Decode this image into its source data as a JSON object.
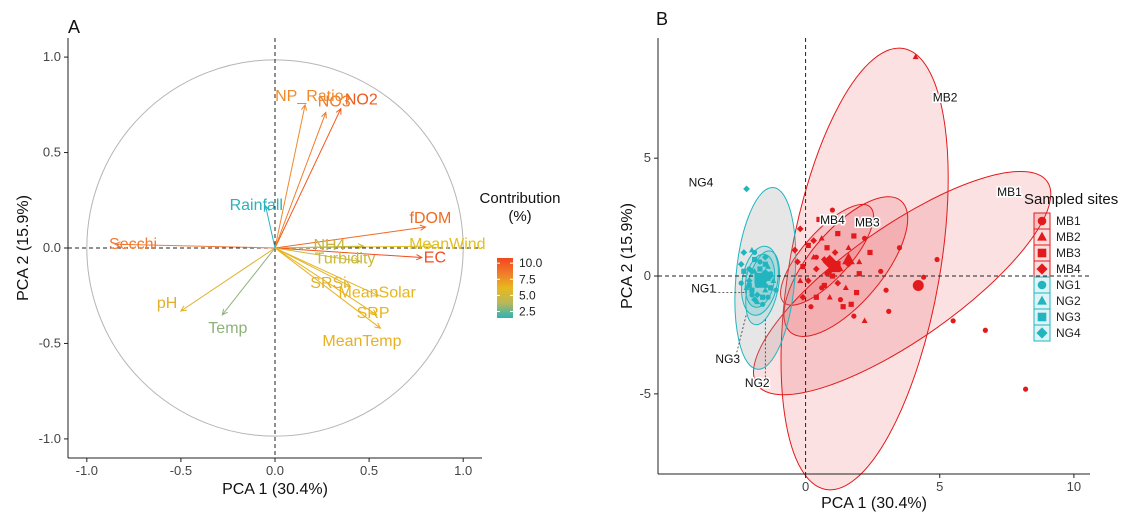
{
  "chart_data": [
    {
      "panel": "A",
      "type": "scatter",
      "subtype": "pca-variable-correlation-circle",
      "xlabel": "PCA 1 (30.4%)",
      "ylabel": "PCA 2 (15.9%)",
      "xlim": [
        -1.1,
        1.1
      ],
      "ylim": [
        -1.1,
        1.1
      ],
      "xticks": [
        -1.0,
        -0.5,
        0.0,
        0.5,
        1.0
      ],
      "yticks": [
        -1.0,
        -0.5,
        0.0,
        0.5,
        1.0
      ],
      "xtick_labels": [
        "-1.0",
        "-0.5",
        "0.0",
        "0.5",
        "1.0"
      ],
      "ytick_labels": [
        "-1.0",
        "-0.5",
        "0.0",
        "0.5",
        "1.0"
      ],
      "grid": false,
      "legend": {
        "title": "Contribution\n(%)",
        "placement": "right",
        "type": "colorbar",
        "ticks": [
          2.5,
          5.0,
          7.5,
          10.0
        ],
        "tick_labels": [
          "2.5",
          "5.0",
          "7.5",
          "10.0"
        ],
        "range": [
          1.5,
          10.8
        ],
        "colors": [
          "#2ab3b8",
          "#b8b85a",
          "#e8b81e",
          "#f07b2a",
          "#f2471e"
        ]
      },
      "series": [
        {
          "name": "NO2",
          "x": 0.35,
          "y": 0.73,
          "contribution": 10.2,
          "color": "#f05a20"
        },
        {
          "name": "NO3",
          "x": 0.27,
          "y": 0.71,
          "contribution": 8.8,
          "color": "#f07a25"
        },
        {
          "name": "NP_Ratio",
          "x": 0.16,
          "y": 0.75,
          "contribution": 8.0,
          "color": "#f08a2a"
        },
        {
          "name": "fDOM",
          "x": 0.8,
          "y": 0.11,
          "contribution": 9.6,
          "color": "#f06a22"
        },
        {
          "name": "MeanWind",
          "x": 0.84,
          "y": 0.01,
          "contribution": 6.0,
          "color": "#e2bf20"
        },
        {
          "name": "NH4",
          "x": 0.47,
          "y": 0.01,
          "contribution": 4.2,
          "color": "#c2b63a"
        },
        {
          "name": "EC",
          "x": 0.78,
          "y": -0.05,
          "contribution": 10.5,
          "color": "#f24b1e"
        },
        {
          "name": "Turbidity",
          "x": 0.45,
          "y": -0.07,
          "contribution": 4.5,
          "color": "#cbb93a"
        },
        {
          "name": "SRSi",
          "x": 0.4,
          "y": -0.2,
          "contribution": 5.8,
          "color": "#e0b22a"
        },
        {
          "name": "MeanSolar",
          "x": 0.55,
          "y": -0.25,
          "contribution": 6.2,
          "color": "#e6b51f"
        },
        {
          "name": "SRP",
          "x": 0.54,
          "y": -0.35,
          "contribution": 6.5,
          "color": "#e8b41c"
        },
        {
          "name": "MeanTemp",
          "x": 0.56,
          "y": -0.42,
          "contribution": 6.8,
          "color": "#eab01e"
        },
        {
          "name": "Rainfall",
          "x": -0.05,
          "y": 0.22,
          "contribution": 1.8,
          "color": "#2ab3bd"
        },
        {
          "name": "Secchi",
          "x": -0.85,
          "y": 0.02,
          "contribution": 8.2,
          "color": "#f07a32"
        },
        {
          "name": "pH",
          "x": -0.5,
          "y": -0.33,
          "contribution": 6.5,
          "color": "#e0b02a"
        },
        {
          "name": "Temp",
          "x": -0.28,
          "y": -0.35,
          "contribution": 3.2,
          "color": "#8eb27a"
        }
      ]
    },
    {
      "panel": "B",
      "type": "scatter",
      "subtype": "pca-individuals-with-ellipses",
      "xlabel": "PCA 1 (30.4%)",
      "ylabel": "PCA 2 (15.9%)",
      "xlim": [
        -5.5,
        10.6
      ],
      "ylim": [
        -8.4,
        10.1
      ],
      "xticks": [
        0,
        5,
        10
      ],
      "yticks": [
        -5,
        0,
        5
      ],
      "xtick_labels": [
        "0",
        "5",
        "10"
      ],
      "ytick_labels": [
        "-5",
        "0",
        "5"
      ],
      "grid": false,
      "legend": {
        "title": "Sampled sites",
        "placement": "right",
        "entries": [
          {
            "label": "MB1",
            "shape": "circle",
            "color": "#e31a1c"
          },
          {
            "label": "MB2",
            "shape": "triangle",
            "color": "#e31a1c"
          },
          {
            "label": "MB3",
            "shape": "square",
            "color": "#e31a1c"
          },
          {
            "label": "MB4",
            "shape": "diamond",
            "color": "#e31a1c"
          },
          {
            "label": "NG1",
            "shape": "circle",
            "color": "#22b5c0"
          },
          {
            "label": "NG2",
            "shape": "triangle",
            "color": "#22b5c0"
          },
          {
            "label": "NG3",
            "shape": "square",
            "color": "#22b5c0"
          },
          {
            "label": "NG4",
            "shape": "diamond",
            "color": "#22b5c0"
          }
        ]
      },
      "ellipses": [
        {
          "site": "MB1",
          "cx": 3.6,
          "cy": -0.3,
          "rx": 6.6,
          "ry": 2.4,
          "angle_deg": -35,
          "color": "#e31a1c"
        },
        {
          "site": "MB2",
          "cx": 2.2,
          "cy": 0.3,
          "rx": 2.8,
          "ry": 9.5,
          "angle_deg": 10,
          "color": "#e31a1c"
        },
        {
          "site": "MB3",
          "cx": 1.5,
          "cy": 0.4,
          "rx": 3.2,
          "ry": 1.55,
          "angle_deg": -50,
          "color": "#e31a1c"
        },
        {
          "site": "MB4",
          "cx": 0.8,
          "cy": 0.9,
          "rx": 2.4,
          "ry": 1.0,
          "angle_deg": -48,
          "color": "#e31a1c"
        },
        {
          "site": "NG1",
          "cx": -1.7,
          "cy": -0.2,
          "rx": 1.0,
          "ry": 0.6,
          "angle_deg": -80,
          "color": "#22b5c0"
        },
        {
          "site": "NG2",
          "cx": -1.6,
          "cy": -0.5,
          "rx": 1.4,
          "ry": 0.65,
          "angle_deg": -78,
          "color": "#22b5c0"
        },
        {
          "site": "NG3",
          "cx": -1.7,
          "cy": -0.2,
          "rx": 1.3,
          "ry": 0.75,
          "angle_deg": -80,
          "color": "#22b5c0"
        },
        {
          "site": "NG4",
          "cx": -1.5,
          "cy": -0.1,
          "rx": 3.4,
          "ry": 1.25,
          "angle_deg": -85,
          "color": "#22b5c0"
        }
      ],
      "ellipse_labels": [
        {
          "text": "MB1",
          "x": 7.6,
          "y": 3.4
        },
        {
          "text": "MB2",
          "x": 5.2,
          "y": 7.4
        },
        {
          "text": "MB3",
          "x": 2.3,
          "y": 2.1
        },
        {
          "text": "MB4",
          "x": 1.0,
          "y": 2.2
        },
        {
          "text": "NG4",
          "x": -3.9,
          "y": 3.8
        },
        {
          "text": "NG1",
          "x": -3.8,
          "y": -0.7
        },
        {
          "text": "NG3",
          "x": -2.9,
          "y": -3.7
        },
        {
          "text": "NG2",
          "x": -1.8,
          "y": -4.7
        }
      ],
      "series": [
        {
          "name": "MB1",
          "shape": "circle",
          "color": "#e31a1c",
          "points": [
            [
              0.6,
              -0.5
            ],
            [
              0.8,
              0.1
            ],
            [
              1.3,
              -1.0
            ],
            [
              2.8,
              0.2
            ],
            [
              3.0,
              -0.6
            ],
            [
              3.5,
              1.2
            ],
            [
              4.2,
              -0.4
            ],
            [
              4.4,
              -0.05
            ],
            [
              4.9,
              0.7
            ],
            [
              5.5,
              -1.9
            ],
            [
              6.7,
              -2.3
            ],
            [
              8.2,
              -4.8
            ],
            [
              1.0,
              2.8
            ],
            [
              3.1,
              -1.5
            ],
            [
              0.4,
              0.8
            ],
            [
              1.8,
              -1.7
            ],
            [
              2.2,
              1.6
            ],
            [
              0.2,
              -1.3
            ]
          ]
        },
        {
          "name": "MB2",
          "shape": "triangle",
          "color": "#e31a1c",
          "points": [
            [
              4.1,
              9.3
            ],
            [
              1.6,
              1.2
            ],
            [
              1.3,
              0.3
            ],
            [
              0.3,
              0.8
            ],
            [
              0.9,
              -0.9
            ],
            [
              2.2,
              -1.9
            ],
            [
              0.6,
              1.6
            ],
            [
              1.5,
              -0.5
            ],
            [
              -0.2,
              -0.2
            ],
            [
              2.0,
              0.6
            ]
          ]
        },
        {
          "name": "MB3",
          "shape": "square",
          "color": "#e31a1c",
          "points": [
            [
              1.1,
              0.4
            ],
            [
              0.5,
              2.4
            ],
            [
              1.0,
              0.0
            ],
            [
              1.8,
              1.7
            ],
            [
              0.7,
              -0.4
            ],
            [
              2.0,
              0.1
            ],
            [
              1.9,
              -0.7
            ],
            [
              0.8,
              1.2
            ],
            [
              1.4,
              -1.3
            ],
            [
              2.4,
              1.0
            ],
            [
              0.1,
              1.3
            ],
            [
              1.2,
              1.8
            ],
            [
              1.7,
              -1.2
            ],
            [
              0.4,
              -0.9
            ],
            [
              -0.1,
              0.4
            ]
          ]
        },
        {
          "name": "MB4",
          "shape": "diamond",
          "color": "#e31a1c",
          "points": [
            [
              -0.3,
              0.6
            ],
            [
              0.3,
              1.5
            ],
            [
              -0.2,
              2.0
            ],
            [
              0.7,
              0.7
            ],
            [
              1.2,
              -0.3
            ],
            [
              0.1,
              -0.2
            ],
            [
              0.4,
              0.3
            ],
            [
              -0.4,
              1.1
            ],
            [
              1.1,
              1.0
            ],
            [
              0.9,
              0.2
            ],
            [
              1.6,
              0.5
            ],
            [
              -0.1,
              -0.9
            ]
          ]
        },
        {
          "name": "NG1",
          "shape": "circle",
          "color": "#22b5c0",
          "points": [
            [
              -2.1,
              0.3
            ],
            [
              -1.8,
              -0.4
            ],
            [
              -1.4,
              -0.9
            ],
            [
              -1.6,
              0.0
            ],
            [
              -2.0,
              -0.8
            ],
            [
              -1.3,
              0.1
            ],
            [
              -1.7,
              0.6
            ],
            [
              -1.5,
              -0.4
            ],
            [
              -2.4,
              -0.3
            ],
            [
              -1.9,
              1.0
            ],
            [
              -1.1,
              -0.6
            ],
            [
              -1.6,
              -1.2
            ]
          ]
        },
        {
          "name": "NG2",
          "shape": "triangle",
          "color": "#22b5c0",
          "points": [
            [
              -1.9,
              0.2
            ],
            [
              -1.5,
              -0.6
            ],
            [
              -2.2,
              -0.5
            ],
            [
              -1.2,
              -0.2
            ],
            [
              -1.7,
              -0.1
            ],
            [
              -2.0,
              1.1
            ],
            [
              -1.4,
              0.4
            ],
            [
              -1.8,
              -1.1
            ]
          ]
        },
        {
          "name": "NG3",
          "shape": "square",
          "color": "#22b5c0",
          "points": [
            [
              -1.8,
              0.0
            ],
            [
              -2.1,
              -0.4
            ],
            [
              -1.5,
              0.5
            ],
            [
              -1.6,
              -0.9
            ],
            [
              -2.3,
              0.2
            ],
            [
              -1.3,
              -0.5
            ],
            [
              -1.9,
              0.7
            ],
            [
              -1.4,
              -0.1
            ],
            [
              -2.0,
              -0.6
            ],
            [
              -1.7,
              0.3
            ]
          ]
        },
        {
          "name": "NG4",
          "shape": "diamond",
          "color": "#22b5c0",
          "points": [
            [
              -2.2,
              3.7
            ],
            [
              -2.0,
              0.2
            ],
            [
              -1.6,
              -0.3
            ],
            [
              -2.4,
              0.5
            ],
            [
              -1.8,
              -0.8
            ],
            [
              -1.3,
              0.0
            ],
            [
              -2.1,
              -0.2
            ],
            [
              -1.5,
              0.8
            ],
            [
              -1.9,
              -1.0
            ],
            [
              -2.3,
              1.0
            ]
          ]
        }
      ],
      "large_points": [
        {
          "shape": "circle",
          "color": "#e31a1c",
          "x": 4.2,
          "y": -0.4
        },
        {
          "shape": "triangle",
          "color": "#e31a1c",
          "x": 1.6,
          "y": 0.7
        },
        {
          "shape": "square",
          "color": "#e31a1c",
          "x": 1.1,
          "y": 0.4
        },
        {
          "shape": "diamond",
          "color": "#e31a1c",
          "x": 0.9,
          "y": 0.6
        },
        {
          "shape": "circle",
          "color": "#22b5c0",
          "x": -1.7,
          "y": -0.2
        },
        {
          "shape": "triangle",
          "color": "#22b5c0",
          "x": -1.6,
          "y": -0.3
        },
        {
          "shape": "square",
          "color": "#22b5c0",
          "x": -1.7,
          "y": -0.1
        },
        {
          "shape": "diamond",
          "color": "#22b5c0",
          "x": -1.5,
          "y": 0.0
        }
      ]
    }
  ]
}
